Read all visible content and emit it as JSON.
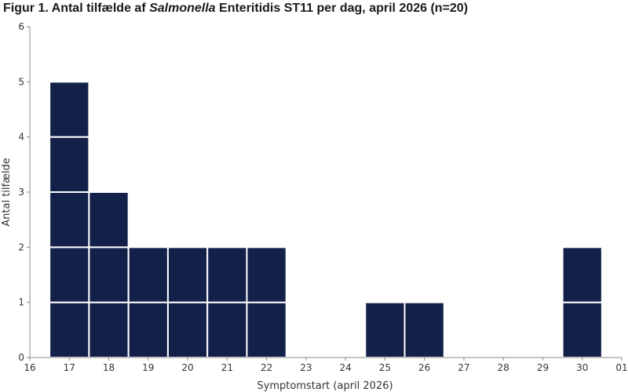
{
  "title": {
    "prefix": "Figur 1. Antal tilfælde af ",
    "italic": "Salmonella",
    "suffix": " Enteritidis ST11 per dag, april 2026 (n=20)"
  },
  "colors": {
    "bar": "#13214a",
    "cell_border": "#ffffff",
    "axis": "#888888",
    "text": "#333333"
  },
  "chart_data": {
    "type": "bar",
    "style": "epicurve-stacked-cells",
    "categories": [
      "16",
      "17",
      "18",
      "19",
      "20",
      "21",
      "22",
      "23",
      "24",
      "25",
      "26",
      "27",
      "28",
      "29",
      "30",
      "01"
    ],
    "values": [
      0,
      5,
      3,
      2,
      2,
      2,
      2,
      0,
      0,
      1,
      1,
      0,
      0,
      0,
      2,
      0
    ],
    "title": "Figur 1. Antal tilfælde af Salmonella Enteritidis ST11 per dag, april 2026 (n=20)",
    "xlabel": "Symptomstart (april 2026)",
    "ylabel": "Antal tilfælde",
    "ylim": [
      0,
      6
    ],
    "yticks": [
      0,
      1,
      2,
      3,
      4,
      5,
      6
    ],
    "grid": false,
    "legend": "none"
  }
}
